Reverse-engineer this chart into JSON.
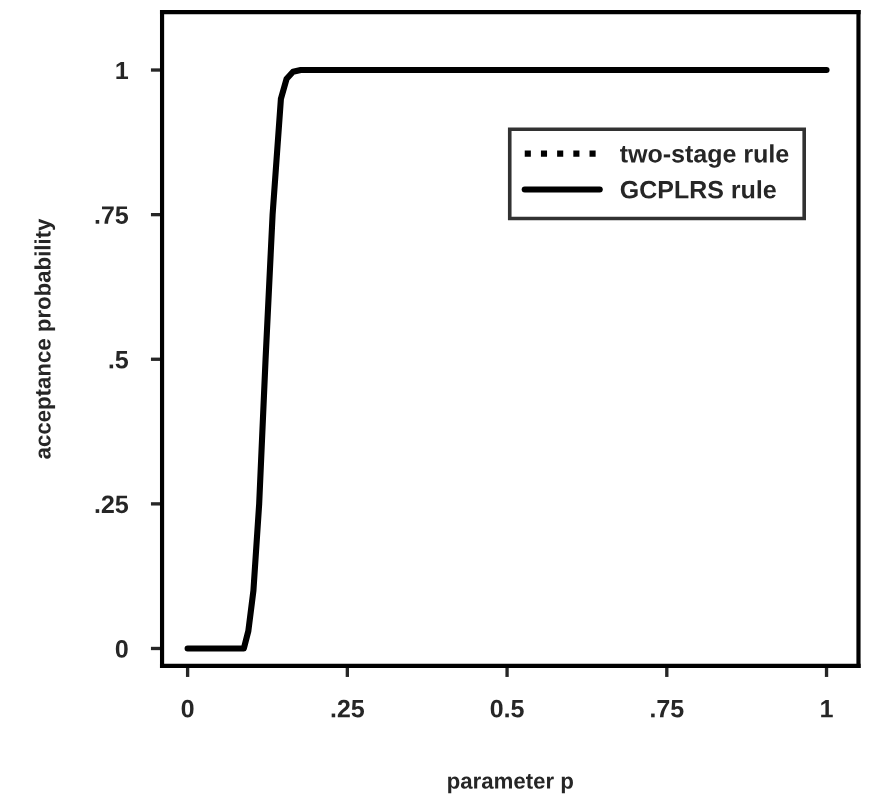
{
  "chart_data": {
    "type": "line",
    "xlabel": "parameter p",
    "ylabel": "acceptance probability",
    "xlim": [
      -0.04,
      1.05
    ],
    "ylim": [
      -0.03,
      1.1
    ],
    "xticks": [
      0,
      {
        "value": 0.25,
        "label": ".25"
      },
      0.5,
      {
        "value": 0.75,
        "label": ".75"
      },
      1
    ],
    "yticks": [
      0,
      {
        "value": 0.25,
        "label": ".25"
      },
      {
        "value": 0.5,
        "label": ".5"
      },
      {
        "value": 0.75,
        "label": ".75"
      },
      1
    ],
    "grid": false,
    "legend": "top right",
    "marker": "none",
    "series": [
      {
        "name": "two-stage rule",
        "color": "#000000",
        "line_style": "dotted"
      },
      {
        "name": "GCPLRS rule",
        "color": "#000000",
        "line_style": "solid",
        "x": [
          0,
          0.05,
          0.088,
          0.095,
          0.103,
          0.112,
          0.122,
          0.133,
          0.146,
          0.155,
          0.165,
          0.177,
          0.25,
          0.5,
          0.75,
          1
        ],
        "values": [
          0,
          0,
          0,
          0.03,
          0.1,
          0.25,
          0.5,
          0.75,
          0.95,
          0.985,
          0.997,
          1,
          1,
          1,
          1,
          1
        ]
      }
    ]
  }
}
